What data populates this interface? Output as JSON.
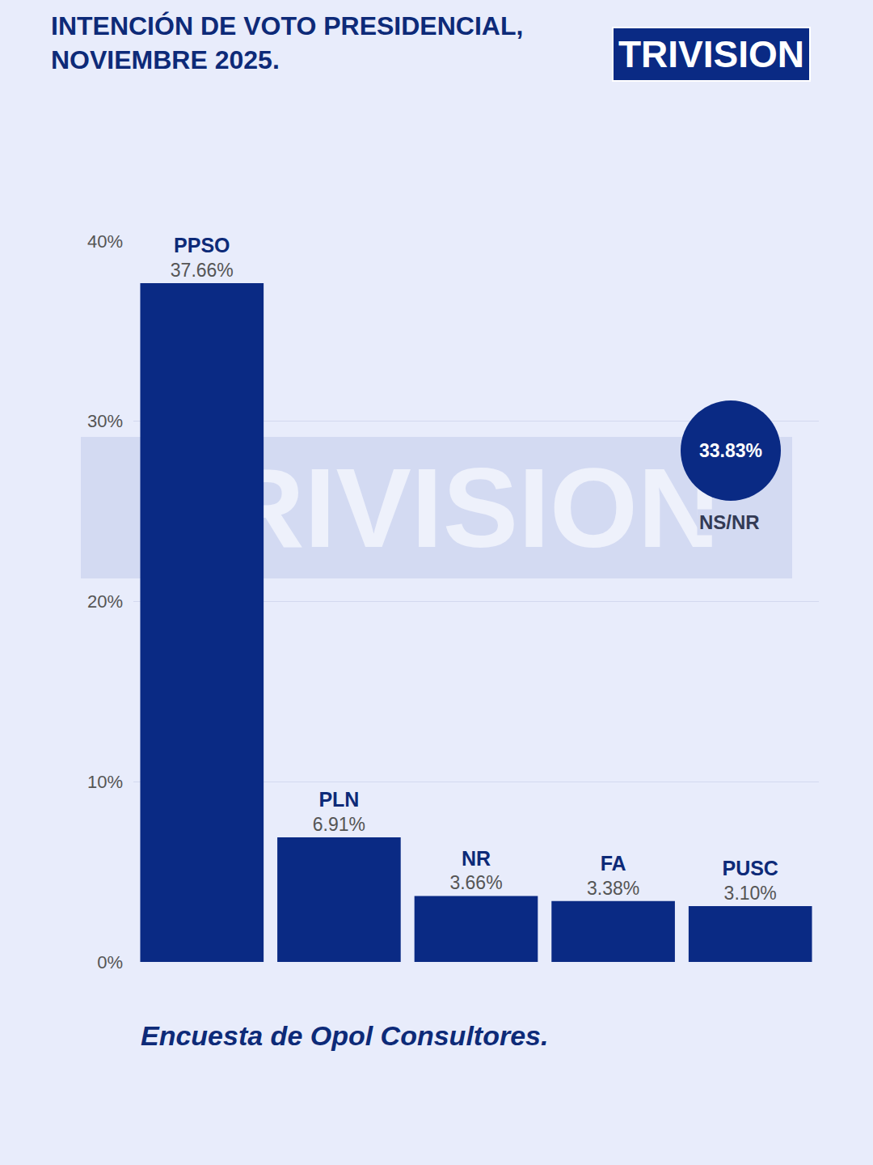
{
  "chart_data": {
    "type": "bar",
    "title": "INTENCIÓN DE VOTO PRESIDENCIAL, NOVIEMBRE 2025.",
    "logo": "TRIVISION",
    "watermark": "TRIVISION",
    "source": "Encuesta de Opol Consultores.",
    "categories": [
      "PPSO",
      "PLN",
      "NR",
      "FA",
      "PUSC"
    ],
    "values": [
      37.66,
      6.91,
      3.66,
      3.38,
      3.1
    ],
    "value_labels": [
      "37.66%",
      "6.91%",
      "3.66%",
      "3.38%",
      "3.10%"
    ],
    "color": "#0a2a84",
    "ylim": [
      0,
      40
    ],
    "yticks": [
      {
        "value": 0,
        "label": "0%"
      },
      {
        "value": 10,
        "label": "10%"
      },
      {
        "value": 20,
        "label": "20%"
      },
      {
        "value": 30,
        "label": "30%"
      },
      {
        "value": 40,
        "label": "40%"
      }
    ],
    "grid": true,
    "data_labels": true,
    "tick_labels": "y",
    "annotations": [
      "33.83%",
      "NS/NR"
    ]
  }
}
